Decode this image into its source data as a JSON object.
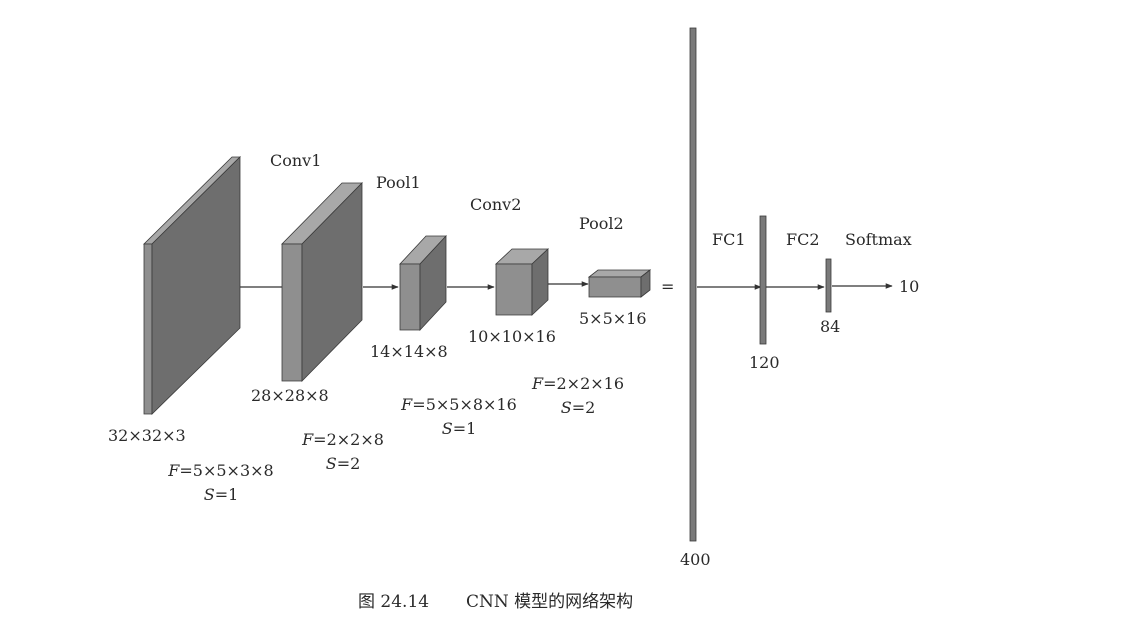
{
  "layers": {
    "input": {
      "dims": "32×32×3",
      "f_prefix": "F",
      "f_value": "=5×5×3×8",
      "s_prefix": "S",
      "s_value": "=1"
    },
    "conv1": {
      "name": "Conv1",
      "dims": "28×28×8"
    },
    "pool1": {
      "name": "Pool1",
      "dims": "14×14×8",
      "f_prefix": "F",
      "f_value": "=2×2×8",
      "s_prefix": "S",
      "s_value": "=2"
    },
    "conv2": {
      "name": "Conv2",
      "dims": "10×10×16",
      "f_prefix": "F",
      "f_value": "=5×5×8×16",
      "s_prefix": "S",
      "s_value": "=1"
    },
    "pool2": {
      "name": "Pool2",
      "dims": "5×5×16",
      "f_prefix": "F",
      "f_value": "=2×2×16",
      "s_prefix": "S",
      "s_value": "=2"
    },
    "flatten": {
      "equals": "=",
      "size": "400"
    },
    "fc1": {
      "name": "FC1",
      "size": "120"
    },
    "fc2": {
      "name": "FC2",
      "size": "84"
    },
    "softmax": {
      "name": "Softmax",
      "size": "10"
    }
  },
  "caption": {
    "label": "图 24.14",
    "text": "CNN 模型的网络架构"
  },
  "colors": {
    "front": "#6e6e6e",
    "side": "#8f8f8f",
    "top": "#a8a8a8",
    "edge": "#3a3a3a",
    "line": "#333333"
  }
}
